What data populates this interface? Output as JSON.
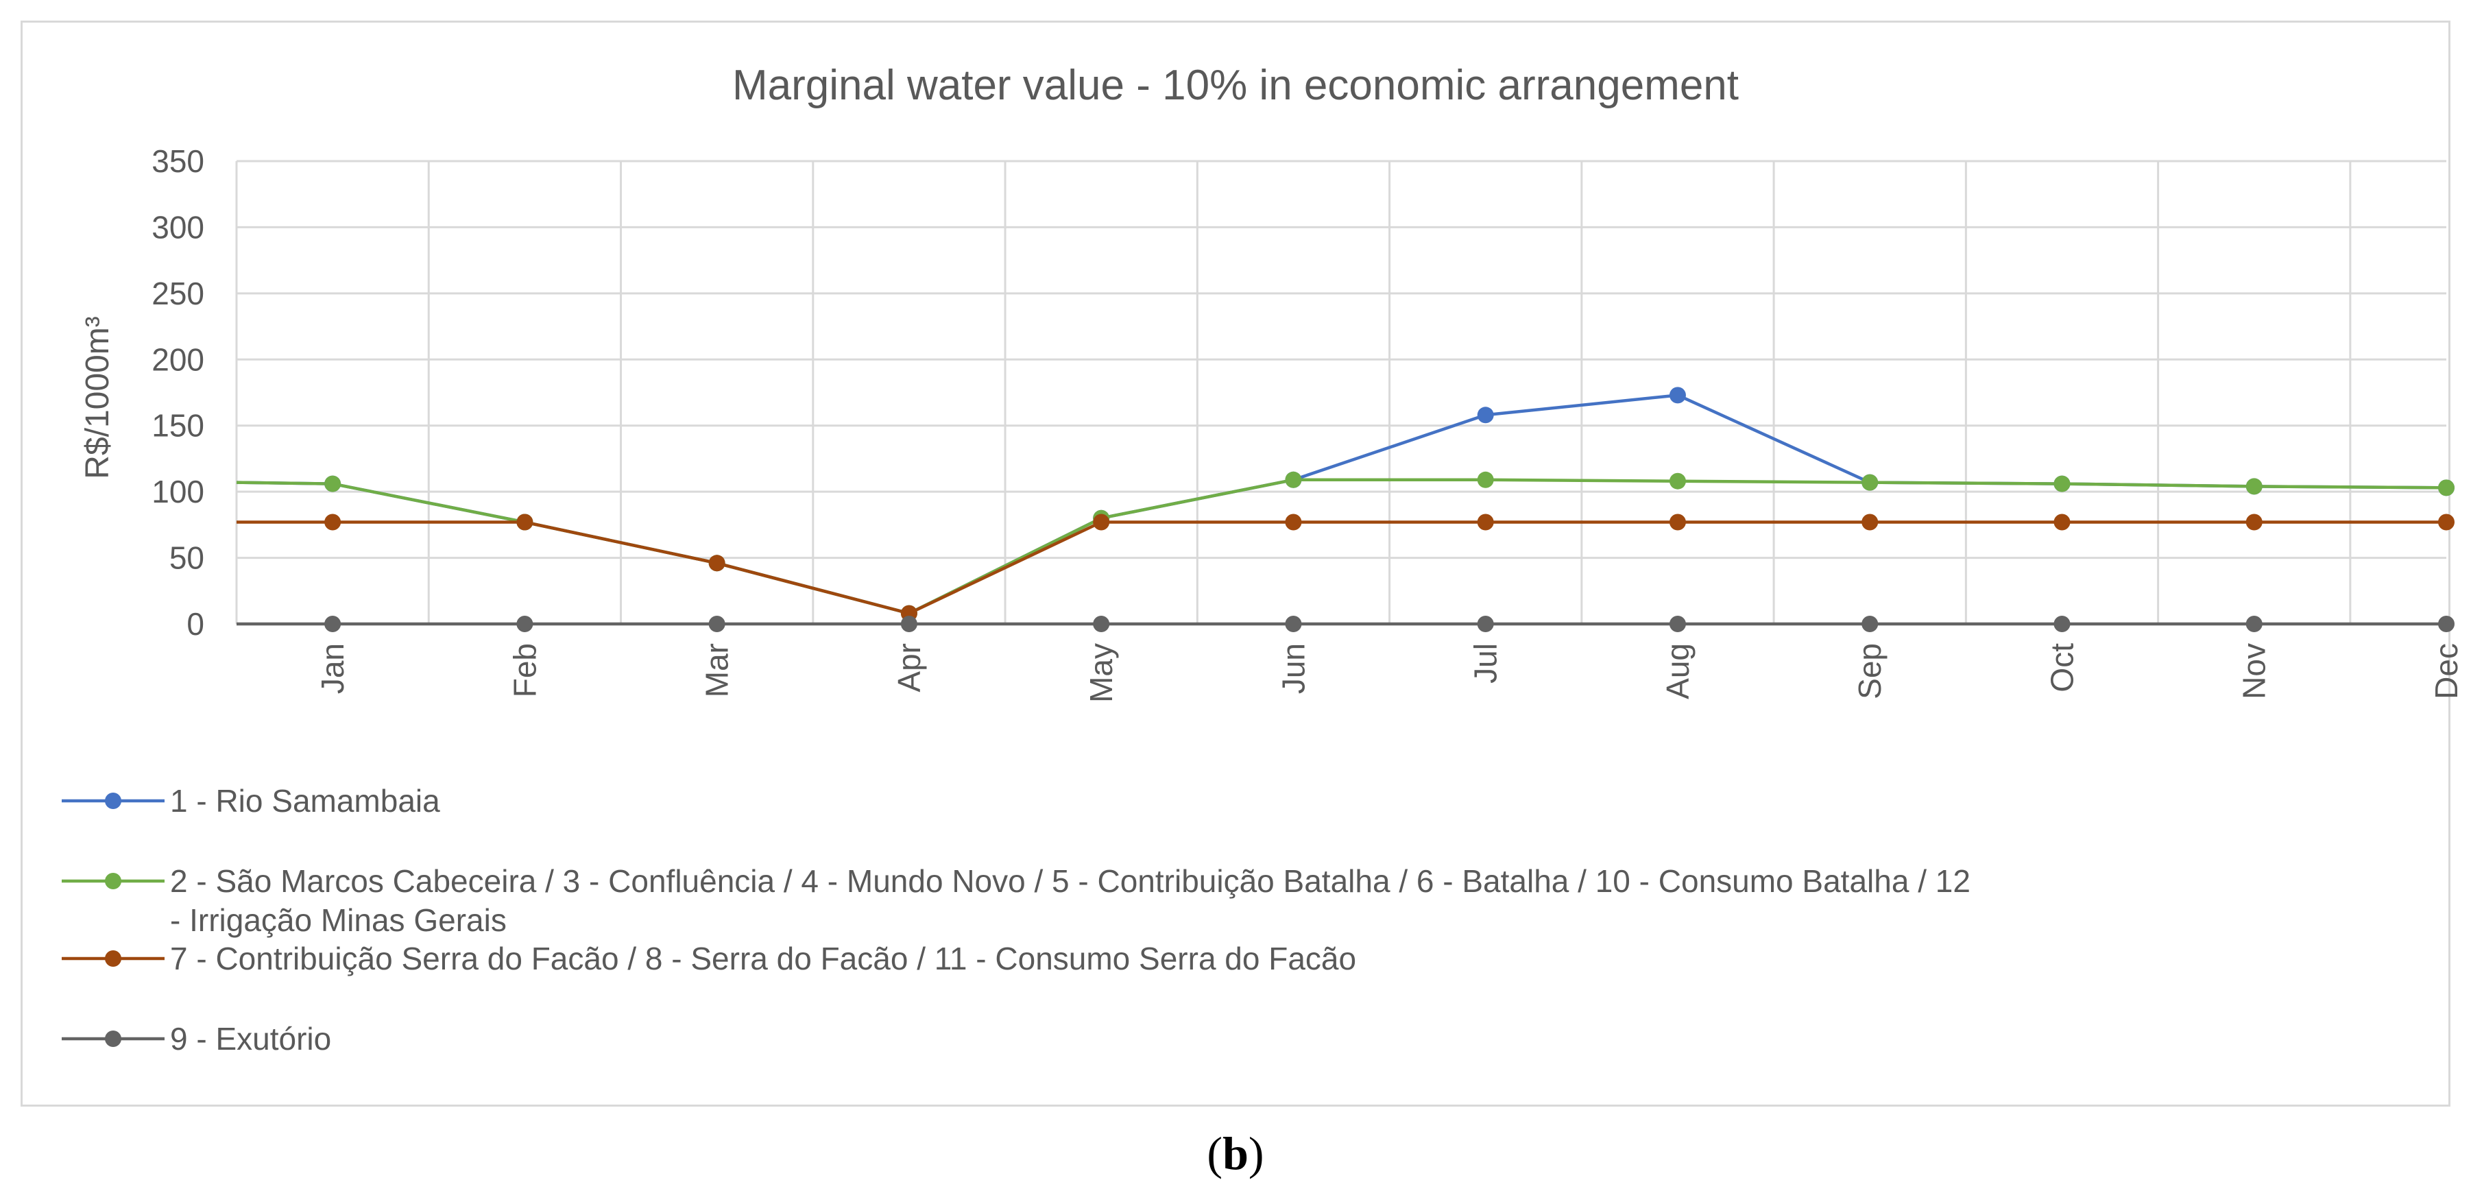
{
  "chart_data": {
    "type": "line",
    "title": "Marginal water value - 10% in economic arrangement",
    "xlabel": "",
    "ylabel": "R$/1000m³",
    "ylim": [
      0,
      350
    ],
    "yticks": [
      0,
      50,
      100,
      150,
      200,
      250,
      300,
      350
    ],
    "grid": true,
    "legend_position": "bottom",
    "categories": [
      "Jan",
      "Feb",
      "Mar",
      "Apr",
      "May",
      "Jun",
      "Jul",
      "Aug",
      "Sep",
      "Oct",
      "Nov",
      "Dec"
    ],
    "series": [
      {
        "name": "1 - Rio Samambaia",
        "color": "#4472c4",
        "values": [
          106,
          77,
          46,
          8,
          80,
          109,
          158,
          173,
          107,
          106,
          104,
          103
        ],
        "edge_left": 107,
        "edge_right": 101
      },
      {
        "name": "2 - São Marcos Cabeceira / 3 - Confluência / 4 - Mundo Novo / 5 - Contribuição Batalha / 6 - Batalha / 10 - Consumo Batalha / 12 - Irrigação Minas Gerais",
        "name_line1": "2 - São Marcos Cabeceira / 3 - Confluência / 4 - Mundo Novo / 5 - Contribuição Batalha / 6 - Batalha / 10 - Consumo Batalha / 12",
        "name_line2": "- Irrigação Minas Gerais",
        "color": "#70ad47",
        "values": [
          106,
          77,
          46,
          8,
          80,
          109,
          109,
          108,
          107,
          106,
          104,
          103
        ],
        "edge_left": 107,
        "edge_right": 101
      },
      {
        "name": "7 - Contribuição Serra do Facão / 8 - Serra do Facão / 11 - Consumo Serra do Facão",
        "color": "#9e480e",
        "values": [
          77,
          77,
          46,
          8,
          77,
          77,
          77,
          77,
          77,
          77,
          77,
          77
        ],
        "edge_left": 77,
        "edge_right": 77
      },
      {
        "name": "9 - Exutório",
        "color": "#636363",
        "values": [
          0,
          0,
          0,
          0,
          0,
          0,
          0,
          0,
          0,
          0,
          0,
          0
        ],
        "edge_left": 0,
        "edge_right": 0
      }
    ]
  },
  "caption": {
    "open": "(",
    "letter": "b",
    "close": ")"
  }
}
